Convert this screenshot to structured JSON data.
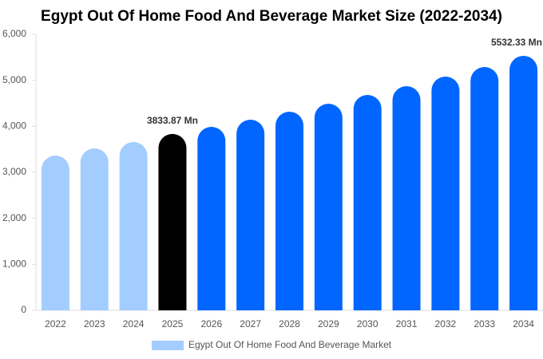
{
  "chart_data": {
    "type": "bar",
    "title": "Egypt Out Of Home Food And Beverage Market Size (2022-2034)",
    "categories": [
      "2022",
      "2023",
      "2024",
      "2025",
      "2026",
      "2027",
      "2028",
      "2029",
      "2030",
      "2031",
      "2032",
      "2033",
      "2034"
    ],
    "series": [
      {
        "name": "Egypt Out Of Home Food And Beverage Market",
        "color": "#a3cdff",
        "bar_colors": [
          "#a3cdff",
          "#a3cdff",
          "#a3cdff",
          "#000000",
          "#0066ff",
          "#0066ff",
          "#0066ff",
          "#0066ff",
          "#0066ff",
          "#0066ff",
          "#0066ff",
          "#0066ff",
          "#0066ff"
        ],
        "values": [
          3364,
          3520,
          3659,
          3833.87,
          3988,
          4144,
          4318,
          4491,
          4682,
          4873,
          5081,
          5289,
          5532.33
        ],
        "value_labels": [
          null,
          null,
          null,
          "3833.87 Mn",
          null,
          null,
          null,
          null,
          null,
          null,
          null,
          null,
          "5532.33 Mn"
        ]
      }
    ],
    "ylim": [
      0,
      6000
    ],
    "yticks": [
      0,
      {
        "value": 1000,
        "label": "1,000"
      },
      {
        "value": 2000,
        "label": "2,000"
      },
      {
        "value": 3000,
        "label": "3,000"
      },
      {
        "value": 4000,
        "label": "4,000"
      },
      {
        "value": 5000,
        "label": "5,000"
      },
      {
        "value": 6000,
        "label": "6,000"
      }
    ],
    "grid": false,
    "legend": "bottom"
  }
}
